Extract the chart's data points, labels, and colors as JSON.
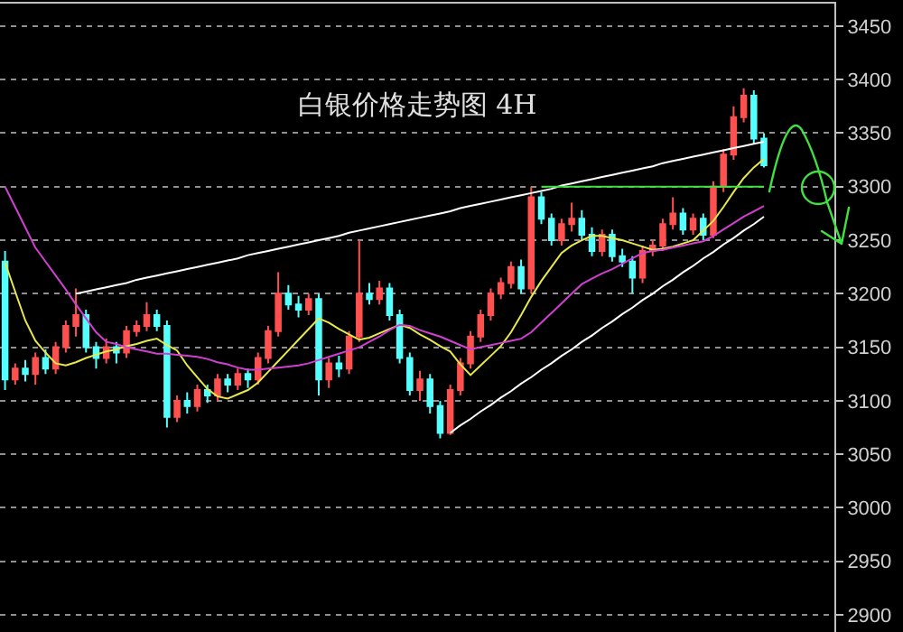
{
  "chart_data": {
    "type": "candlestick",
    "title": "白银价格走势图 4H",
    "categories": [
      null,
      null,
      null,
      null,
      null,
      null,
      null,
      null,
      null,
      null,
      null,
      null,
      null,
      null,
      null,
      null,
      null,
      null,
      null,
      null,
      null,
      null,
      null,
      null,
      null,
      null,
      null,
      null,
      null,
      null,
      null,
      null,
      null,
      null,
      null,
      null,
      null,
      null,
      null,
      null,
      null,
      null,
      null,
      null,
      null,
      null,
      null,
      null,
      null,
      null,
      null,
      null,
      null,
      null,
      null,
      null,
      null,
      null,
      null,
      null,
      null,
      null,
      null,
      null,
      null,
      null,
      null,
      null,
      null,
      null,
      null,
      null,
      null,
      null,
      null,
      null
    ],
    "ohlc": [
      [
        3230,
        3240,
        3110,
        3120
      ],
      [
        3120,
        3135,
        3115,
        3130
      ],
      [
        3130,
        3138,
        3118,
        3125
      ],
      [
        3125,
        3145,
        3115,
        3140
      ],
      [
        3140,
        3148,
        3125,
        3130
      ],
      [
        3130,
        3155,
        3125,
        3150
      ],
      [
        3150,
        3175,
        3145,
        3170
      ],
      [
        3170,
        3205,
        3160,
        3180
      ],
      [
        3180,
        3185,
        3145,
        3150
      ],
      [
        3150,
        3155,
        3130,
        3140
      ],
      [
        3140,
        3158,
        3135,
        3150
      ],
      [
        3150,
        3155,
        3135,
        3145
      ],
      [
        3145,
        3170,
        3140,
        3165
      ],
      [
        3165,
        3175,
        3160,
        3170
      ],
      [
        3170,
        3192,
        3165,
        3180
      ],
      [
        3180,
        3185,
        3165,
        3170
      ],
      [
        3170,
        3175,
        3075,
        3085
      ],
      [
        3085,
        3105,
        3080,
        3100
      ],
      [
        3100,
        3108,
        3088,
        3095
      ],
      [
        3095,
        3115,
        3090,
        3110
      ],
      [
        3110,
        3115,
        3098,
        3105
      ],
      [
        3105,
        3125,
        3100,
        3120
      ],
      [
        3120,
        3125,
        3108,
        3115
      ],
      [
        3115,
        3130,
        3110,
        3125
      ],
      [
        3125,
        3130,
        3112,
        3120
      ],
      [
        3120,
        3145,
        3115,
        3140
      ],
      [
        3140,
        3170,
        3135,
        3165
      ],
      [
        3165,
        3220,
        3160,
        3200
      ],
      [
        3200,
        3208,
        3185,
        3190
      ],
      [
        3190,
        3198,
        3178,
        3185
      ],
      [
        3185,
        3200,
        3180,
        3195
      ],
      [
        3195,
        3200,
        3105,
        3120
      ],
      [
        3120,
        3140,
        3112,
        3135
      ],
      [
        3135,
        3142,
        3122,
        3130
      ],
      [
        3130,
        3165,
        3125,
        3160
      ],
      [
        3160,
        3250,
        3155,
        3200
      ],
      [
        3200,
        3210,
        3190,
        3195
      ],
      [
        3195,
        3212,
        3190,
        3205
      ],
      [
        3205,
        3210,
        3175,
        3180
      ],
      [
        3180,
        3185,
        3135,
        3140
      ],
      [
        3140,
        3145,
        3105,
        3110
      ],
      [
        3110,
        3128,
        3100,
        3120
      ],
      [
        3120,
        3125,
        3088,
        3095
      ],
      [
        3095,
        3100,
        3065,
        3070
      ],
      [
        3070,
        3115,
        3068,
        3110
      ],
      [
        3110,
        3140,
        3105,
        3135
      ],
      [
        3135,
        3165,
        3130,
        3160
      ],
      [
        3160,
        3185,
        3155,
        3180
      ],
      [
        3180,
        3205,
        3175,
        3200
      ],
      [
        3200,
        3215,
        3195,
        3210
      ],
      [
        3210,
        3230,
        3205,
        3225
      ],
      [
        3225,
        3232,
        3200,
        3205
      ],
      [
        3205,
        3300,
        3200,
        3290
      ],
      [
        3290,
        3295,
        3265,
        3270
      ],
      [
        3270,
        3275,
        3245,
        3250
      ],
      [
        3250,
        3270,
        3245,
        3265
      ],
      [
        3265,
        3285,
        3258,
        3270
      ],
      [
        3270,
        3278,
        3250,
        3255
      ],
      [
        3255,
        3262,
        3235,
        3240
      ],
      [
        3240,
        3260,
        3235,
        3255
      ],
      [
        3255,
        3260,
        3230,
        3235
      ],
      [
        3235,
        3242,
        3225,
        3230
      ],
      [
        3230,
        3235,
        3200,
        3215
      ],
      [
        3215,
        3245,
        3210,
        3240
      ],
      [
        3240,
        3250,
        3235,
        3245
      ],
      [
        3245,
        3270,
        3240,
        3265
      ],
      [
        3265,
        3290,
        3260,
        3275
      ],
      [
        3275,
        3280,
        3255,
        3260
      ],
      [
        3260,
        3275,
        3255,
        3270
      ],
      [
        3270,
        3275,
        3250,
        3255
      ],
      [
        3255,
        3305,
        3252,
        3300
      ],
      [
        3300,
        3335,
        3295,
        3330
      ],
      [
        3330,
        3375,
        3325,
        3365
      ],
      [
        3365,
        3392,
        3360,
        3385
      ],
      [
        3385,
        3390,
        3340,
        3345
      ],
      [
        3345,
        3350,
        3318,
        3320
      ]
    ],
    "series": [
      {
        "type": "line",
        "color": "#e8e84a",
        "values": [
          3229,
          3202,
          3175,
          3156,
          3145,
          3135,
          3133,
          3136,
          3140,
          3143,
          3146,
          3148,
          3151,
          3153,
          3156,
          3158,
          3152,
          3147,
          3133,
          3122,
          3111,
          3104,
          3102,
          3106,
          3110,
          3117,
          3127,
          3137,
          3147,
          3157,
          3167,
          3177,
          3173,
          3167,
          3162,
          3157,
          3159,
          3163,
          3167,
          3171,
          3168,
          3162,
          3157,
          3151,
          3146,
          3134,
          3124,
          3133,
          3142,
          3151,
          3164,
          3180,
          3197,
          3212,
          3225,
          3238,
          3245,
          3250,
          3254,
          3254,
          3252,
          3250,
          3247,
          3244,
          3241,
          3242,
          3244,
          3247,
          3250,
          3259,
          3268,
          3281,
          3295,
          3308,
          3318,
          3326
        ]
      },
      {
        "type": "line",
        "color": "#d040d0",
        "values": [
          3300,
          3281,
          3262,
          3243,
          3230,
          3217,
          3204,
          3190,
          3177,
          3164,
          3155,
          3153,
          3150,
          3148,
          3146,
          3144,
          3144,
          3143,
          3142,
          3141,
          3139,
          3136,
          3134,
          3131,
          3129,
          3129,
          3130,
          3131,
          3132,
          3133,
          3135,
          3138,
          3141,
          3144,
          3147,
          3150,
          3155,
          3160,
          3166,
          3171,
          3170,
          3166,
          3163,
          3160,
          3156,
          3152,
          3148,
          3150,
          3152,
          3154,
          3156,
          3158,
          3164,
          3173,
          3182,
          3191,
          3200,
          3209,
          3214,
          3219,
          3223,
          3228,
          3233,
          3238,
          3240,
          3241,
          3243,
          3245,
          3247,
          3249,
          3254,
          3260,
          3266,
          3272,
          3277,
          3282
        ]
      },
      {
        "type": "line",
        "color": "#ffffff",
        "values": [
          null,
          null,
          null,
          null,
          null,
          null,
          null,
          3200,
          3202,
          3204,
          3206,
          3208,
          3210,
          3213,
          3215,
          3217,
          3219,
          3221,
          3223,
          3225,
          3227,
          3229,
          3231,
          3233,
          3236,
          3238,
          3240,
          3242,
          3244,
          3246,
          3248,
          3250,
          3252,
          3254,
          3257,
          3259,
          3261,
          3263,
          3265,
          3267,
          3269,
          3271,
          3273,
          3275,
          3277,
          3280,
          3282,
          3284,
          3286,
          3288,
          3290,
          3292,
          3294,
          3296,
          3298,
          3301,
          3303,
          3305,
          3307,
          3309,
          3311,
          3313,
          3315,
          3317,
          3319,
          3322,
          3324,
          3326,
          3328,
          3330,
          3332,
          3334,
          3336,
          3338,
          3340,
          3342
        ]
      },
      {
        "type": "line",
        "color": "#ffffff",
        "values": [
          null,
          null,
          null,
          null,
          null,
          null,
          null,
          null,
          null,
          null,
          null,
          null,
          null,
          null,
          null,
          null,
          null,
          null,
          null,
          null,
          null,
          null,
          null,
          null,
          null,
          null,
          null,
          null,
          null,
          null,
          null,
          null,
          null,
          null,
          null,
          null,
          null,
          null,
          null,
          null,
          null,
          null,
          null,
          null,
          3070,
          3077,
          3083,
          3090,
          3096,
          3103,
          3109,
          3116,
          3122,
          3129,
          3135,
          3142,
          3148,
          3155,
          3161,
          3168,
          3174,
          3181,
          3187,
          3194,
          3200,
          3207,
          3213,
          3220,
          3226,
          3233,
          3239,
          3246,
          3252,
          3259,
          3265,
          3272
        ]
      },
      {
        "type": "line",
        "color": "#40e040",
        "values": [
          null,
          null,
          null,
          null,
          null,
          null,
          null,
          null,
          null,
          null,
          null,
          null,
          null,
          null,
          null,
          null,
          null,
          null,
          null,
          null,
          null,
          null,
          null,
          null,
          null,
          null,
          null,
          null,
          null,
          null,
          null,
          null,
          null,
          null,
          null,
          null,
          null,
          null,
          null,
          null,
          null,
          null,
          null,
          null,
          null,
          null,
          null,
          null,
          null,
          null,
          null,
          null,
          null,
          3300,
          3300,
          3300,
          3300,
          3300,
          3300,
          3300,
          3300,
          3300,
          3300,
          3300,
          3300,
          3300,
          3300,
          3300,
          3300,
          3300,
          3300,
          3300,
          3300,
          3300,
          3300,
          3300
        ]
      }
    ],
    "ylim": [
      2884,
      3471
    ],
    "yticks": [
      2900,
      2950,
      3000,
      3050,
      3100,
      3150,
      3200,
      3250,
      3300,
      3350,
      3400,
      3450
    ],
    "grid": "y",
    "tick_labels": "y"
  }
}
